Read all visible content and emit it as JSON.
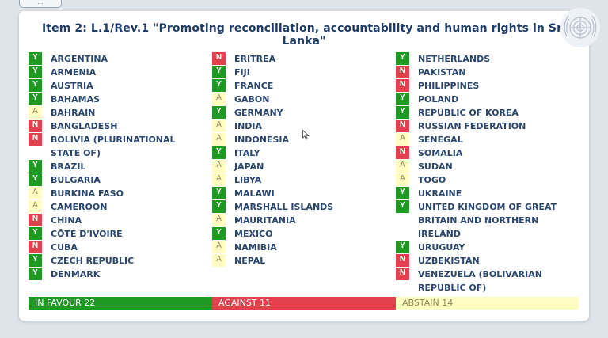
{
  "header": {
    "chip_label": "…"
  },
  "title": "Item 2: L.1/Rev.1 \"Promoting reconciliation, accountability and human rights in Sri Lanka\"",
  "colors": {
    "yes": "#1e9a23",
    "no": "#e0414d",
    "abstain": "#fffcc2"
  },
  "columns": [
    [
      {
        "vote": "Y",
        "name": "ARGENTINA"
      },
      {
        "vote": "Y",
        "name": "ARMENIA"
      },
      {
        "vote": "Y",
        "name": "AUSTRIA"
      },
      {
        "vote": "Y",
        "name": "BAHAMAS"
      },
      {
        "vote": "A",
        "name": "BAHRAIN"
      },
      {
        "vote": "N",
        "name": "BANGLADESH"
      },
      {
        "vote": "N",
        "name": "BOLIVIA (PLURINATIONAL STATE OF)"
      },
      {
        "vote": "Y",
        "name": "BRAZIL"
      },
      {
        "vote": "Y",
        "name": "BULGARIA"
      },
      {
        "vote": "A",
        "name": "BURKINA FASO"
      },
      {
        "vote": "A",
        "name": "CAMEROON"
      },
      {
        "vote": "N",
        "name": "CHINA"
      },
      {
        "vote": "Y",
        "name": "CÔTE D'IVOIRE"
      },
      {
        "vote": "N",
        "name": "CUBA"
      },
      {
        "vote": "Y",
        "name": "CZECH REPUBLIC"
      },
      {
        "vote": "Y",
        "name": "DENMARK"
      }
    ],
    [
      {
        "vote": "N",
        "name": "ERITREA"
      },
      {
        "vote": "Y",
        "name": "FIJI"
      },
      {
        "vote": "Y",
        "name": "FRANCE"
      },
      {
        "vote": "A",
        "name": "GABON"
      },
      {
        "vote": "Y",
        "name": "GERMANY"
      },
      {
        "vote": "A",
        "name": "INDIA"
      },
      {
        "vote": "A",
        "name": "INDONESIA"
      },
      {
        "vote": "Y",
        "name": "ITALY"
      },
      {
        "vote": "A",
        "name": "JAPAN"
      },
      {
        "vote": "A",
        "name": "LIBYA"
      },
      {
        "vote": "Y",
        "name": "MALAWI"
      },
      {
        "vote": "Y",
        "name": "MARSHALL ISLANDS"
      },
      {
        "vote": "A",
        "name": "MAURITANIA"
      },
      {
        "vote": "Y",
        "name": "MEXICO"
      },
      {
        "vote": "A",
        "name": "NAMIBIA"
      },
      {
        "vote": "A",
        "name": "NEPAL"
      }
    ],
    [
      {
        "vote": "Y",
        "name": "NETHERLANDS"
      },
      {
        "vote": "N",
        "name": "PAKISTAN"
      },
      {
        "vote": "N",
        "name": "PHILIPPINES"
      },
      {
        "vote": "Y",
        "name": "POLAND"
      },
      {
        "vote": "Y",
        "name": "REPUBLIC OF KOREA"
      },
      {
        "vote": "N",
        "name": "RUSSIAN FEDERATION"
      },
      {
        "vote": "A",
        "name": "SENEGAL"
      },
      {
        "vote": "N",
        "name": "SOMALIA"
      },
      {
        "vote": "A",
        "name": "SUDAN"
      },
      {
        "vote": "A",
        "name": "TOGO"
      },
      {
        "vote": "Y",
        "name": "UKRAINE"
      },
      {
        "vote": "Y",
        "name": "UNITED KINGDOM OF GREAT BRITAIN AND NORTHERN IRELAND"
      },
      {
        "vote": "Y",
        "name": "URUGUAY"
      },
      {
        "vote": "N",
        "name": "UZBEKISTAN"
      },
      {
        "vote": "N",
        "name": "VENEZUELA (BOLIVARIAN REPUBLIC OF)"
      }
    ]
  ],
  "totals": {
    "in_favour": "IN FAVOUR 22",
    "against": "AGAINST 11",
    "abstain": "ABSTAIN 14"
  },
  "icons": {
    "emblem": "un-emblem-icon",
    "cursor": "mouse-cursor-icon"
  }
}
